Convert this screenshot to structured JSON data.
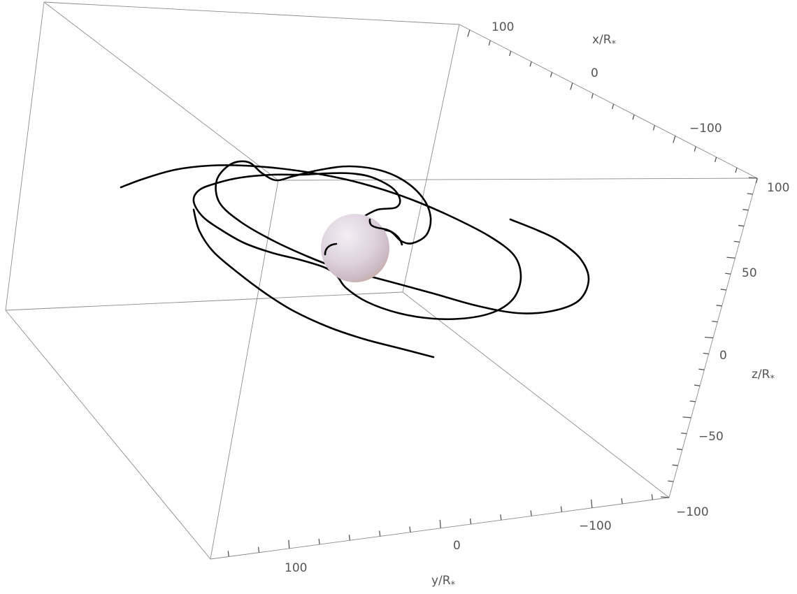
{
  "chart_data": {
    "type": "line",
    "subtype": "3d-orbit",
    "title": "",
    "axes": {
      "x": {
        "label": "x/R",
        "subscript": "*",
        "ticks": [
          100,
          0,
          -100
        ],
        "range": [
          -150,
          150
        ]
      },
      "y": {
        "label": "y/R",
        "subscript": "*",
        "ticks": [
          100,
          0,
          -100
        ],
        "range": [
          -150,
          150
        ]
      },
      "z": {
        "label": "z/R",
        "subscript": "*",
        "ticks": [
          100,
          50,
          0,
          -50,
          -100
        ],
        "range": [
          -100,
          100
        ]
      }
    },
    "grid": false,
    "legend": "none",
    "objects": [
      {
        "kind": "sphere",
        "name": "star",
        "center": [
          0,
          0,
          0
        ],
        "radius": 17
      }
    ],
    "series": [
      {
        "kind": "spiral-trajectory",
        "color": "#000000",
        "points_xyz": [
          [
            -6,
            0,
            30
          ],
          [
            -10,
            -10,
            25
          ],
          [
            -8,
            -25,
            19
          ],
          [
            5,
            -32,
            12
          ],
          [
            30,
            -30,
            5
          ],
          [
            55,
            -20,
            -2
          ],
          [
            70,
            5,
            -8
          ],
          [
            62,
            35,
            -12
          ],
          [
            35,
            60,
            -15
          ],
          [
            0,
            75,
            -16
          ],
          [
            -40,
            78,
            -15
          ],
          [
            -80,
            65,
            -12
          ],
          [
            -110,
            35,
            -8
          ],
          [
            -120,
            0,
            -4
          ],
          [
            -110,
            -40,
            0
          ],
          [
            -80,
            -75,
            3
          ],
          [
            -40,
            -100,
            5
          ],
          [
            5,
            -110,
            5
          ],
          [
            50,
            -105,
            4
          ],
          [
            90,
            -85,
            2
          ],
          [
            118,
            -50,
            0
          ],
          [
            130,
            0,
            -2
          ],
          [
            120,
            50,
            -4
          ],
          [
            95,
            95,
            -6
          ],
          [
            60,
            130,
            -8
          ],
          [
            25,
            150,
            -9
          ],
          [
            -5,
            160,
            -10
          ]
        ]
      }
    ],
    "colors": {
      "sphere": "#e3d8e0",
      "box": "#8c8c8c",
      "text": "#555555",
      "curve": "#000000"
    }
  }
}
